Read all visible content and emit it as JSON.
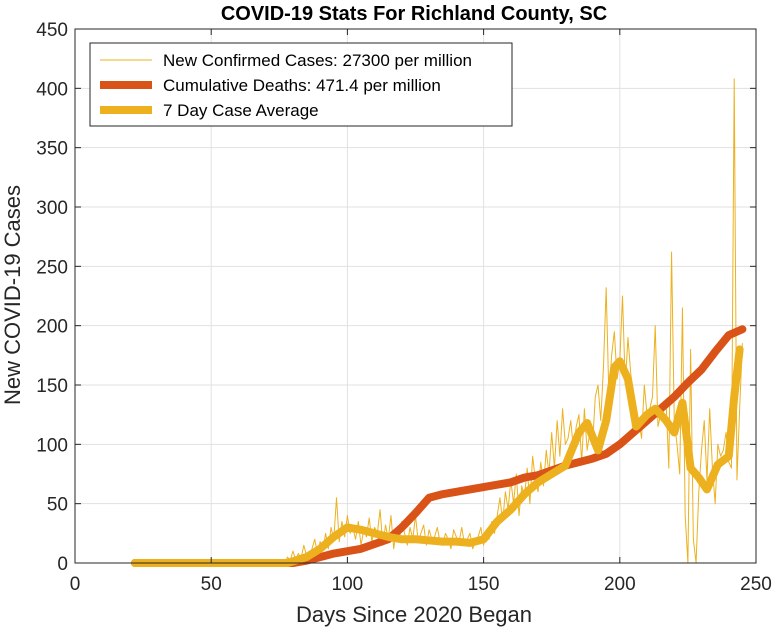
{
  "chart_data": {
    "type": "line",
    "title": "COVID-19 Stats For Richland County, SC",
    "xlabel": "Days Since 2020 Began",
    "ylabel": "New COVID-19 Cases",
    "xlim": [
      0,
      250
    ],
    "ylim": [
      0,
      450
    ],
    "xticks": [
      0,
      50,
      100,
      150,
      200,
      250
    ],
    "yticks": [
      0,
      50,
      100,
      150,
      200,
      250,
      300,
      350,
      400,
      450
    ],
    "grid": true,
    "legend_position": "top-left",
    "series": [
      {
        "name": "New Confirmed Cases: 27300 per million",
        "color": "#EDB120",
        "style": "thin",
        "x": [
          22,
          30,
          40,
          50,
          60,
          70,
          77,
          78,
          79,
          80,
          81,
          82,
          83,
          84,
          85,
          86,
          87,
          88,
          89,
          90,
          91,
          92,
          93,
          94,
          95,
          96,
          97,
          98,
          99,
          100,
          101,
          102,
          103,
          104,
          105,
          106,
          107,
          108,
          109,
          110,
          111,
          112,
          113,
          114,
          115,
          116,
          117,
          118,
          119,
          120,
          121,
          122,
          123,
          124,
          125,
          126,
          127,
          128,
          129,
          130,
          131,
          132,
          133,
          134,
          135,
          136,
          137,
          138,
          139,
          140,
          141,
          142,
          143,
          144,
          145,
          146,
          147,
          148,
          149,
          150,
          151,
          152,
          153,
          154,
          155,
          156,
          157,
          158,
          159,
          160,
          161,
          162,
          163,
          164,
          165,
          166,
          167,
          168,
          169,
          170,
          171,
          172,
          173,
          174,
          175,
          176,
          177,
          178,
          179,
          180,
          181,
          182,
          183,
          184,
          185,
          186,
          187,
          188,
          189,
          190,
          191,
          192,
          193,
          194,
          195,
          196,
          197,
          198,
          199,
          200,
          201,
          202,
          203,
          204,
          205,
          206,
          207,
          208,
          209,
          210,
          211,
          212,
          213,
          214,
          215,
          216,
          217,
          218,
          219,
          220,
          221,
          222,
          223,
          224,
          225,
          226,
          227,
          228,
          229,
          230,
          231,
          232,
          233,
          234,
          235,
          236,
          237,
          238,
          239,
          240,
          241,
          242,
          243,
          244,
          245
        ],
        "values": [
          0,
          0,
          0,
          0,
          0,
          0,
          0,
          5,
          2,
          10,
          3,
          8,
          4,
          15,
          6,
          2,
          12,
          20,
          8,
          18,
          10,
          25,
          12,
          30,
          20,
          55,
          18,
          35,
          22,
          40,
          25,
          30,
          20,
          35,
          15,
          28,
          22,
          38,
          18,
          30,
          25,
          45,
          15,
          32,
          20,
          40,
          12,
          28,
          18,
          35,
          25,
          15,
          30,
          20,
          40,
          18,
          25,
          32,
          15,
          28,
          20,
          22,
          30,
          18,
          15,
          25,
          20,
          12,
          28,
          22,
          18,
          30,
          15,
          20,
          25,
          12,
          18,
          22,
          30,
          15,
          28,
          20,
          35,
          25,
          40,
          55,
          35,
          60,
          45,
          70,
          50,
          75,
          40,
          65,
          55,
          80,
          50,
          90,
          70,
          60,
          85,
          65,
          95,
          75,
          110,
          80,
          120,
          90,
          130,
          100,
          105,
          120,
          95,
          115,
          125,
          85,
          130,
          95,
          110,
          100,
          140,
          150,
          120,
          165,
          232,
          140,
          175,
          195,
          155,
          170,
          225,
          150,
          190,
          160,
          140,
          110,
          120,
          105,
          150,
          125,
          130,
          140,
          200,
          115,
          125,
          130,
          135,
          80,
          262,
          120,
          100,
          75,
          215,
          40,
          0,
          180,
          20,
          0,
          60,
          95,
          120,
          70,
          130,
          80,
          50,
          100,
          90,
          95,
          110,
          85,
          80,
          408,
          70,
          130,
          185
        ]
      },
      {
        "name": "Cumulative Deaths: 471.4 per million",
        "color": "#D95319",
        "style": "thick",
        "x": [
          22,
          80,
          85,
          90,
          95,
          100,
          105,
          110,
          115,
          120,
          125,
          130,
          135,
          140,
          145,
          150,
          155,
          160,
          165,
          170,
          175,
          180,
          185,
          190,
          195,
          200,
          205,
          210,
          215,
          220,
          225,
          230,
          235,
          240,
          245
        ],
        "values": [
          0,
          0,
          2,
          5,
          8,
          10,
          12,
          16,
          20,
          30,
          42,
          55,
          58,
          60,
          62,
          64,
          66,
          68,
          72,
          74,
          78,
          82,
          85,
          88,
          92,
          100,
          110,
          120,
          130,
          140,
          152,
          163,
          178,
          192,
          197
        ]
      },
      {
        "name": "7 Day Case Average",
        "color": "#EDB120",
        "style": "thick",
        "x": [
          22,
          40,
          60,
          78,
          85,
          90,
          95,
          100,
          105,
          110,
          115,
          120,
          125,
          130,
          135,
          140,
          145,
          150,
          155,
          160,
          165,
          170,
          175,
          180,
          185,
          188,
          192,
          195,
          198,
          200,
          203,
          206,
          210,
          213,
          217,
          220,
          223,
          226,
          229,
          232,
          236,
          240,
          242,
          244
        ],
        "values": [
          0,
          0,
          0,
          0,
          5,
          12,
          22,
          30,
          28,
          25,
          22,
          20,
          20,
          19,
          18,
          18,
          17,
          20,
          35,
          45,
          58,
          68,
          75,
          82,
          110,
          118,
          95,
          120,
          165,
          170,
          155,
          115,
          125,
          130,
          120,
          110,
          135,
          80,
          72,
          62,
          83,
          90,
          140,
          180
        ]
      }
    ]
  }
}
